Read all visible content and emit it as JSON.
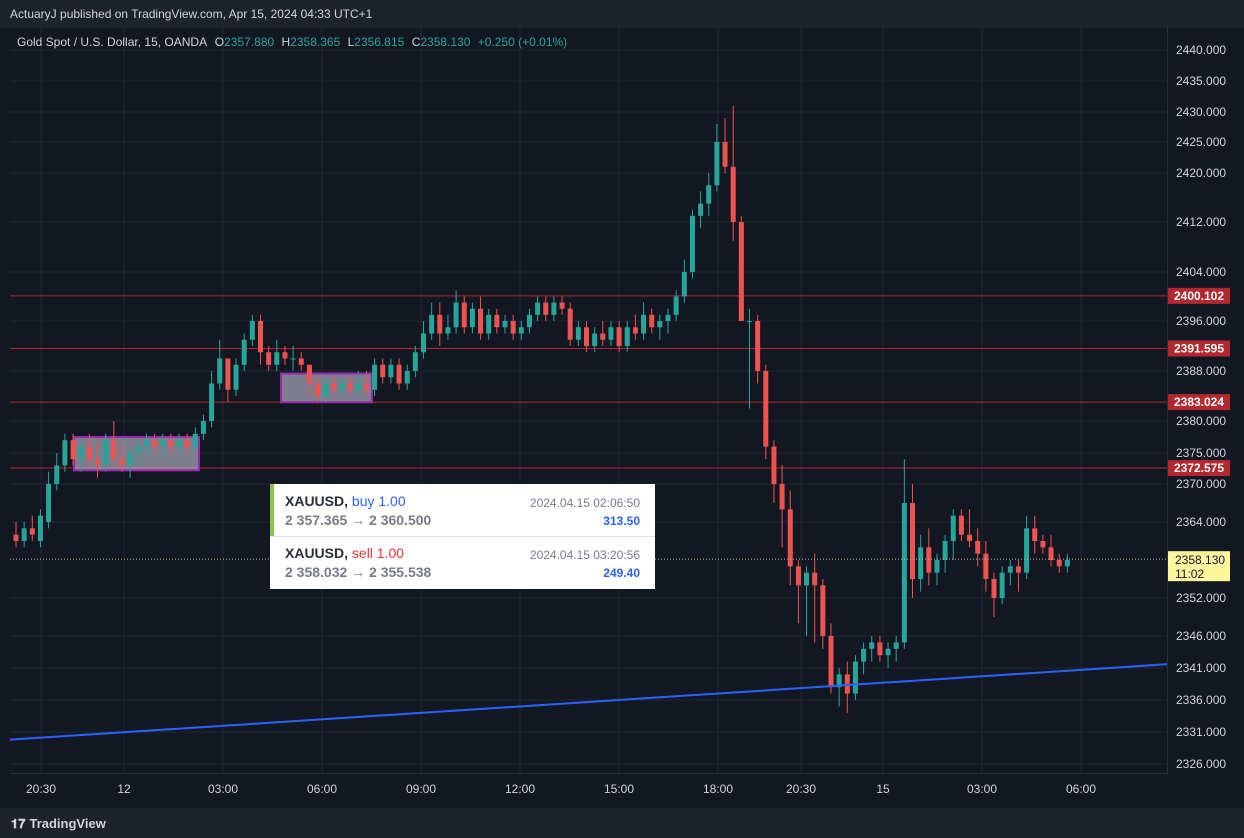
{
  "header": {
    "publisher_text": "ActuaryJ published on TradingView.com, Apr 15, 2024 04:33 UTC+1"
  },
  "legend": {
    "symbol": "Gold Spot / U.S. Dollar, 15, OANDA",
    "o_label": "O",
    "o_value": "2357.880",
    "h_label": "H",
    "h_value": "2358.365",
    "l_label": "L",
    "l_value": "2356.815",
    "c_label": "C",
    "c_value": "2358.130",
    "change": "+0.250 (+0.01%)"
  },
  "orders": [
    {
      "symbol": "XAUUSD,",
      "side": "buy 1.00",
      "time": "2024.04.15 02:06:50",
      "route": "2 357.365 → 2 360.500",
      "pl": "313.50",
      "side_color": "#2962ff",
      "bar_color": "#8bc34a"
    },
    {
      "symbol": "XAUUSD,",
      "side": "sell 1.00",
      "time": "2024.04.15 03:20:56",
      "route": "2 358.032 → 2 355.538",
      "pl": "249.40",
      "side_color": "#e53935",
      "bar_color": "#ffffff"
    }
  ],
  "footer": {
    "brand": "TradingView",
    "brand_icon": "tradingview-logo-icon"
  },
  "colors": {
    "up": "#26a69a",
    "down": "#ef5350",
    "level": "#b2282e",
    "trend": "#2962ff",
    "box_fill": "#b9b4c8",
    "box_stroke": "#9c27b0"
  },
  "chart_data": {
    "type": "candlestick",
    "y_ticks": [
      "2440.000",
      "2435.000",
      "2430.000",
      "2425.000",
      "2420.000",
      "2412.000",
      "2404.000",
      "2396.000",
      "2388.000",
      "2380.000",
      "2375.000",
      "2370.000",
      "2364.000",
      "2352.000",
      "2346.000",
      "2341.000",
      "2336.000",
      "2331.000",
      "2326.000"
    ],
    "x_ticks": [
      "20:30",
      "12",
      "03:00",
      "06:00",
      "09:00",
      "12:00",
      "15:00",
      "18:00",
      "20:30",
      "15",
      "03:00",
      "06:00"
    ],
    "levels": [
      {
        "label": "2400.102",
        "price": 2400.102
      },
      {
        "label": "2391.595",
        "price": 2391.595
      },
      {
        "label": "2383.024",
        "price": 2383.024
      },
      {
        "label": "2372.575",
        "price": 2372.575
      }
    ],
    "last_price": {
      "label": "2358.130",
      "countdown": "11:02",
      "price": 2358.13
    },
    "trendline": {
      "start_price": 2329.8,
      "end_price": 2341.6
    },
    "consolidation_boxes": [
      {
        "price_top": 2377.5,
        "price_bottom": 2372.2
      },
      {
        "price_top": 2387.6,
        "price_bottom": 2383.0
      }
    ],
    "candles": [
      [
        2362,
        2364,
        2360,
        2361
      ],
      [
        2361,
        2364,
        2360,
        2363
      ],
      [
        2363,
        2365,
        2361,
        2362
      ],
      [
        2361,
        2366,
        2360,
        2365
      ],
      [
        2364,
        2372,
        2363,
        2370
      ],
      [
        2370,
        2375,
        2369,
        2373
      ],
      [
        2373,
        2378,
        2372,
        2377
      ],
      [
        2377,
        2378,
        2373,
        2374
      ],
      [
        2374,
        2377,
        2372,
        2376
      ],
      [
        2376,
        2378,
        2373,
        2374
      ],
      [
        2374,
        2377,
        2371,
        2373
      ],
      [
        2373,
        2378,
        2372,
        2377
      ],
      [
        2377,
        2380,
        2373,
        2374
      ],
      [
        2374,
        2376,
        2372,
        2373
      ],
      [
        2373,
        2376,
        2371,
        2375
      ],
      [
        2375,
        2377,
        2373,
        2376
      ],
      [
        2376,
        2378,
        2374,
        2377
      ],
      [
        2377,
        2378,
        2375,
        2376
      ],
      [
        2376,
        2378,
        2374,
        2377
      ],
      [
        2377,
        2378,
        2375,
        2376
      ],
      [
        2376,
        2378,
        2375,
        2377
      ],
      [
        2377,
        2378,
        2375,
        2376
      ],
      [
        2376,
        2379,
        2375,
        2378
      ],
      [
        2378,
        2381,
        2377,
        2380
      ],
      [
        2380,
        2388,
        2379,
        2386
      ],
      [
        2386,
        2393,
        2385,
        2390
      ],
      [
        2390,
        2390,
        2383,
        2385
      ],
      [
        2385,
        2390,
        2384,
        2389
      ],
      [
        2389,
        2394,
        2388,
        2393
      ],
      [
        2393,
        2397,
        2392,
        2396
      ],
      [
        2396,
        2397,
        2389,
        2391
      ],
      [
        2391,
        2392,
        2388,
        2389
      ],
      [
        2389,
        2393,
        2388,
        2391
      ],
      [
        2391,
        2392,
        2389,
        2390
      ],
      [
        2390,
        2392,
        2388,
        2390
      ],
      [
        2390,
        2391,
        2388,
        2389
      ],
      [
        2389,
        2389,
        2384,
        2386
      ],
      [
        2386,
        2387,
        2383,
        2384
      ],
      [
        2384,
        2387,
        2383,
        2386
      ],
      [
        2386,
        2387,
        2384,
        2385
      ],
      [
        2385,
        2387,
        2384,
        2386
      ],
      [
        2386,
        2387,
        2384,
        2385
      ],
      [
        2385,
        2388,
        2384,
        2386
      ],
      [
        2386,
        2388,
        2384,
        2385
      ],
      [
        2385,
        2390,
        2384,
        2389
      ],
      [
        2389,
        2390,
        2386,
        2387
      ],
      [
        2387,
        2390,
        2386,
        2389
      ],
      [
        2389,
        2390,
        2385,
        2386
      ],
      [
        2386,
        2389,
        2385,
        2388
      ],
      [
        2388,
        2392,
        2387,
        2391
      ],
      [
        2391,
        2396,
        2390,
        2394
      ],
      [
        2394,
        2399,
        2393,
        2397
      ],
      [
        2397,
        2399,
        2392,
        2394
      ],
      [
        2394,
        2397,
        2393,
        2395
      ],
      [
        2395,
        2401,
        2394,
        2399
      ],
      [
        2399,
        2400,
        2394,
        2395
      ],
      [
        2395,
        2399,
        2394,
        2398
      ],
      [
        2398,
        2400,
        2393,
        2394
      ],
      [
        2394,
        2398,
        2393,
        2397
      ],
      [
        2397,
        2398,
        2394,
        2395
      ],
      [
        2395,
        2397,
        2394,
        2396
      ],
      [
        2396,
        2397,
        2393,
        2394
      ],
      [
        2394,
        2396,
        2393,
        2395
      ],
      [
        2395,
        2398,
        2394,
        2397
      ],
      [
        2397,
        2400,
        2396,
        2399
      ],
      [
        2399,
        2400,
        2396,
        2397
      ],
      [
        2397,
        2400,
        2396,
        2399
      ],
      [
        2399,
        2400,
        2397,
        2398
      ],
      [
        2398,
        2399,
        2392,
        2393
      ],
      [
        2393,
        2396,
        2392,
        2395
      ],
      [
        2395,
        2396,
        2391,
        2392
      ],
      [
        2392,
        2395,
        2391,
        2394
      ],
      [
        2394,
        2396,
        2392,
        2393
      ],
      [
        2393,
        2396,
        2392,
        2395
      ],
      [
        2395,
        2396,
        2391,
        2392
      ],
      [
        2392,
        2396,
        2391,
        2395
      ],
      [
        2395,
        2397,
        2393,
        2394
      ],
      [
        2394,
        2399,
        2393,
        2397
      ],
      [
        2397,
        2398,
        2394,
        2395
      ],
      [
        2395,
        2397,
        2393,
        2396
      ],
      [
        2396,
        2398,
        2394,
        2397
      ],
      [
        2397,
        2401,
        2396,
        2400
      ],
      [
        2400,
        2406,
        2399,
        2404
      ],
      [
        2404,
        2414,
        2403,
        2413
      ],
      [
        2413,
        2417,
        2411,
        2415
      ],
      [
        2415,
        2420,
        2413,
        2418
      ],
      [
        2418,
        2428,
        2417,
        2425
      ],
      [
        2425,
        2429,
        2420,
        2421
      ],
      [
        2421,
        2431,
        2409,
        2412
      ],
      [
        2412,
        2413,
        2396,
        2396
      ],
      [
        2396,
        2398,
        2382,
        2396
      ],
      [
        2396,
        2397,
        2386,
        2388
      ],
      [
        2388,
        2389,
        2374,
        2376
      ],
      [
        2376,
        2377,
        2367,
        2370
      ],
      [
        2370,
        2373,
        2360,
        2366
      ],
      [
        2366,
        2369,
        2354,
        2357
      ],
      [
        2357,
        2358,
        2348,
        2354
      ],
      [
        2354,
        2357,
        2346,
        2356
      ],
      [
        2356,
        2359,
        2345,
        2354
      ],
      [
        2354,
        2355,
        2344,
        2346
      ],
      [
        2346,
        2348,
        2337,
        2338
      ],
      [
        2338,
        2341,
        2335,
        2340
      ],
      [
        2340,
        2342,
        2334,
        2337
      ],
      [
        2337,
        2343,
        2336,
        2342
      ],
      [
        2342,
        2345,
        2340,
        2344
      ],
      [
        2344,
        2346,
        2342,
        2345
      ],
      [
        2345,
        2346,
        2342,
        2343
      ],
      [
        2343,
        2345,
        2341,
        2344
      ],
      [
        2344,
        2346,
        2342,
        2345
      ],
      [
        2345,
        2374,
        2344,
        2367
      ],
      [
        2367,
        2370,
        2352,
        2355
      ],
      [
        2355,
        2362,
        2353,
        2360
      ],
      [
        2360,
        2363,
        2354,
        2356
      ],
      [
        2356,
        2359,
        2354,
        2358
      ],
      [
        2358,
        2362,
        2356,
        2361
      ],
      [
        2361,
        2366,
        2358,
        2365
      ],
      [
        2365,
        2366,
        2361,
        2362
      ],
      [
        2362,
        2366,
        2360,
        2361
      ],
      [
        2361,
        2363,
        2357,
        2359
      ],
      [
        2359,
        2361,
        2353,
        2355
      ],
      [
        2355,
        2356,
        2349,
        2352
      ],
      [
        2352,
        2357,
        2351,
        2356
      ],
      [
        2356,
        2358,
        2354,
        2357
      ],
      [
        2357,
        2358,
        2353,
        2356
      ],
      [
        2356,
        2365,
        2355,
        2363
      ],
      [
        2363,
        2365,
        2359,
        2361
      ],
      [
        2361,
        2362,
        2359,
        2360
      ],
      [
        2360,
        2362,
        2357,
        2358
      ],
      [
        2358,
        2359,
        2356,
        2357
      ],
      [
        2357,
        2359,
        2356,
        2358
      ]
    ]
  }
}
